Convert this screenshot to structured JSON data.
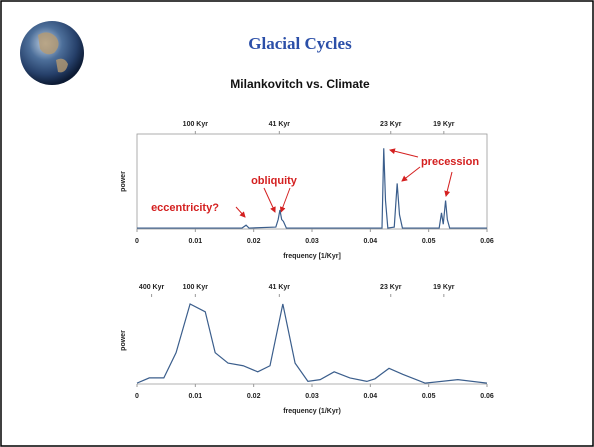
{
  "slide": {
    "title": "Glacial Cycles",
    "subtitle": "Milankovitch vs. Climate"
  },
  "chart_data": [
    {
      "type": "line",
      "color": "#3b5e8c",
      "frame": true,
      "xlabel": "frequency [1/Kyr]",
      "ylabel": "power",
      "xlim": [
        0,
        0.06
      ],
      "xticks": [
        0,
        0.01,
        0.02,
        0.03,
        0.04,
        0.05,
        0.06
      ],
      "x2ticks": [
        {
          "value": 0.01,
          "label": "100 Kyr"
        },
        {
          "value": 0.0244,
          "label": "41 Kyr"
        },
        {
          "value": 0.0435,
          "label": "23 Kyr"
        },
        {
          "value": 0.0526,
          "label": "19 Kyr"
        }
      ],
      "ylim": [
        0,
        1
      ],
      "x": [
        0,
        0.018,
        0.0187,
        0.0192,
        0.0238,
        0.0242,
        0.0245,
        0.0248,
        0.0251,
        0.0256,
        0.042,
        0.0423,
        0.0426,
        0.043,
        0.0441,
        0.0446,
        0.045,
        0.0455,
        0.0518,
        0.0522,
        0.0525,
        0.0529,
        0.0532,
        0.0536,
        0.06
      ],
      "values": [
        0.01,
        0.01,
        0.04,
        0.01,
        0.02,
        0.1,
        0.2,
        0.1,
        0.08,
        0.01,
        0.01,
        0.85,
        0.3,
        0.01,
        0.02,
        0.48,
        0.15,
        0.01,
        0.01,
        0.17,
        0.05,
        0.3,
        0.1,
        0.01,
        0.01
      ],
      "annotations": [
        "eccentricity?",
        "obliquity",
        "precession"
      ]
    },
    {
      "type": "line",
      "color": "#3b5e8c",
      "frame": false,
      "xlabel": "frequency (1/Kyr)",
      "ylabel": "power",
      "xlim": [
        0,
        0.06
      ],
      "xticks": [
        0,
        0.01,
        0.02,
        0.03,
        0.04,
        0.05,
        0.06
      ],
      "x2ticks": [
        {
          "value": 0.0025,
          "label": "400 Kyr"
        },
        {
          "value": 0.01,
          "label": "100 Kyr"
        },
        {
          "value": 0.0244,
          "label": "41 Kyr"
        },
        {
          "value": 0.0435,
          "label": "23 Kyr"
        },
        {
          "value": 0.0526,
          "label": "19 Kyr"
        }
      ],
      "ylim": [
        0,
        1
      ],
      "x": [
        0,
        0.0021,
        0.0046,
        0.0067,
        0.0091,
        0.0117,
        0.0134,
        0.0156,
        0.0182,
        0.0207,
        0.0228,
        0.025,
        0.0271,
        0.0293,
        0.0314,
        0.0338,
        0.0365,
        0.0394,
        0.0408,
        0.0432,
        0.0456,
        0.0494,
        0.055,
        0.06
      ],
      "values": [
        0.01,
        0.07,
        0.07,
        0.36,
        0.92,
        0.83,
        0.36,
        0.24,
        0.21,
        0.14,
        0.21,
        0.92,
        0.24,
        0.03,
        0.05,
        0.14,
        0.07,
        0.03,
        0.06,
        0.18,
        0.11,
        0.01,
        0.05,
        0.01
      ]
    }
  ]
}
